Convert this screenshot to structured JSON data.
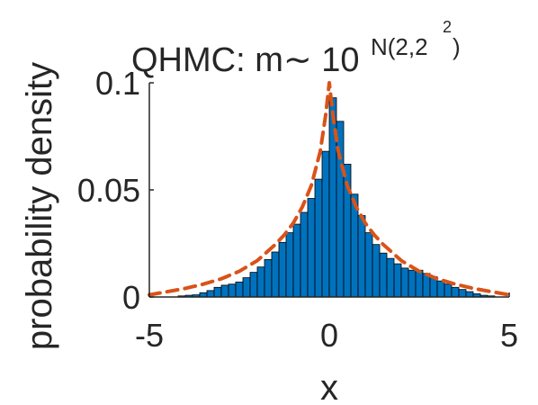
{
  "chart_data": {
    "type": "bar",
    "title": {
      "main": "QHMC: m∼ 10",
      "superscript": "N(2,2",
      "superscript_exponent": "2",
      "superscript_close": ")"
    },
    "xlabel": "x",
    "ylabel": "probability density",
    "xlim": [
      -5,
      5
    ],
    "ylim": [
      0,
      0.1
    ],
    "xticks": [
      -5,
      0,
      5
    ],
    "xtick_labels": [
      "-5",
      "0",
      "5"
    ],
    "yticks": [
      0,
      0.05,
      0.1
    ],
    "ytick_labels": [
      "0",
      "0.05",
      "0.1"
    ],
    "grid": false,
    "bin_width": 0.2,
    "bin_centers": [
      -4.9,
      -4.7,
      -4.5,
      -4.3,
      -4.1,
      -3.9,
      -3.7,
      -3.5,
      -3.3,
      -3.1,
      -2.9,
      -2.7,
      -2.5,
      -2.3,
      -2.1,
      -1.9,
      -1.7,
      -1.5,
      -1.3,
      -1.1,
      -0.9,
      -0.7,
      -0.5,
      -0.3,
      -0.1,
      0.1,
      0.3,
      0.5,
      0.7,
      0.9,
      1.1,
      1.3,
      1.5,
      1.7,
      1.9,
      2.1,
      2.3,
      2.5,
      2.7,
      2.9,
      3.1,
      3.3,
      3.5,
      3.7,
      3.9,
      4.1,
      4.3,
      4.5,
      4.7,
      4.9
    ],
    "values": [
      0,
      0,
      0,
      0,
      0.0005,
      0.0008,
      0.001,
      0.002,
      0.003,
      0.0045,
      0.0055,
      0.006,
      0.007,
      0.009,
      0.0115,
      0.014,
      0.0175,
      0.021,
      0.0255,
      0.03,
      0.034,
      0.0395,
      0.046,
      0.055,
      0.068,
      0.093,
      0.082,
      0.062,
      0.048,
      0.038,
      0.03,
      0.0245,
      0.0205,
      0.018,
      0.0155,
      0.0135,
      0.0125,
      0.0125,
      0.011,
      0.0095,
      0.0075,
      0.006,
      0.0045,
      0.0035,
      0.0025,
      0.0015,
      0.0008,
      0.0005,
      0,
      0
    ],
    "bar_color": "#0072BD",
    "series": [
      {
        "style": "dashed line",
        "color": "#D95319",
        "x": [
          -5,
          -4.5,
          -4,
          -3.5,
          -3,
          -2.5,
          -2,
          -1.5,
          -1.25,
          -1,
          -0.75,
          -0.5,
          -0.25,
          -0.1,
          0,
          0.1,
          0.25,
          0.5,
          0.75,
          1,
          1.25,
          1.5,
          2,
          2.5,
          3,
          3.5,
          4,
          4.5,
          5
        ],
        "y": [
          0.001,
          0.0025,
          0.004,
          0.006,
          0.0085,
          0.012,
          0.017,
          0.0245,
          0.029,
          0.0345,
          0.042,
          0.052,
          0.068,
          0.085,
          0.1,
          0.085,
          0.068,
          0.052,
          0.042,
          0.0345,
          0.029,
          0.0245,
          0.017,
          0.012,
          0.0085,
          0.006,
          0.004,
          0.0025,
          0.001
        ]
      }
    ]
  }
}
